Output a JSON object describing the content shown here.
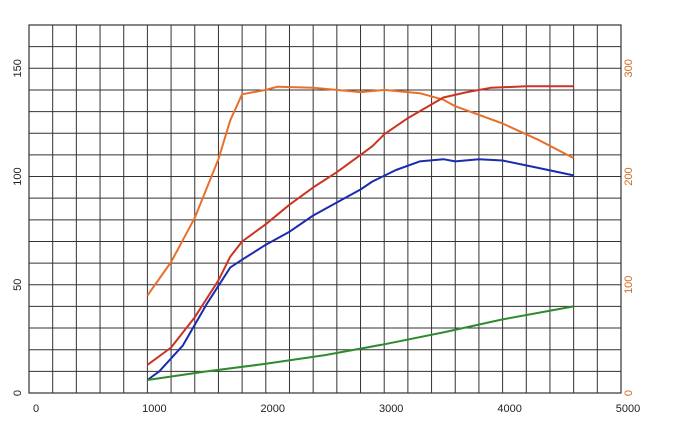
{
  "chart_data": {
    "type": "line",
    "title": "",
    "xlabel": "",
    "ylabel": "",
    "y2label": "",
    "xlim": [
      0,
      5000
    ],
    "ylim": [
      0,
      170
    ],
    "y2lim": [
      0,
      340
    ],
    "grid": true,
    "x_ticks": [
      "0",
      "1000",
      "2000",
      "3000",
      "4000",
      "5000"
    ],
    "y_ticks": [
      "0",
      "50",
      "100",
      "150"
    ],
    "y2_ticks": [
      "0",
      "100",
      "200",
      "300"
    ],
    "colors": {
      "grid": "#333333",
      "y2_axis": "#d2691e"
    },
    "series": [
      {
        "color": "#e8702a",
        "axis": "right",
        "x": [
          1000,
          1200,
          1400,
          1600,
          1700,
          1800,
          2000,
          2100,
          2400,
          2800,
          3000,
          3300,
          3500,
          3600,
          4000,
          4300,
          4600
        ],
        "values": [
          90,
          121,
          162,
          216,
          252,
          276,
          280,
          283,
          282,
          278,
          280,
          277,
          271,
          265,
          249,
          234,
          217
        ]
      },
      {
        "color": "#cc3322",
        "axis": "left",
        "x": [
          1000,
          1200,
          1400,
          1600,
          1700,
          1800,
          2000,
          2200,
          2400,
          2600,
          2800,
          2900,
          3000,
          3200,
          3500,
          3700,
          3900,
          4200,
          4600
        ],
        "values": [
          13,
          21,
          35,
          52,
          63,
          70,
          78,
          87,
          95,
          102,
          110,
          114,
          119.5,
          127,
          136.5,
          139,
          141,
          141.7,
          141.7
        ]
      },
      {
        "color": "#1a2bb0",
        "axis": "left",
        "x": [
          1000,
          1100,
          1300,
          1500,
          1700,
          1800,
          2000,
          2200,
          2400,
          2600,
          2800,
          2900,
          3100,
          3300,
          3500,
          3600,
          3800,
          4000,
          4300,
          4600
        ],
        "values": [
          6,
          10,
          22,
          41,
          58,
          61.6,
          68.5,
          74.5,
          82,
          88,
          94,
          97.7,
          103,
          107,
          108,
          107,
          108,
          107.4,
          104,
          100.5
        ]
      },
      {
        "color": "#2e8b2e",
        "axis": "left",
        "x": [
          1000,
          1500,
          2000,
          2500,
          3000,
          3500,
          4000,
          4300,
          4600
        ],
        "values": [
          6,
          10,
          13.5,
          17.5,
          22.5,
          28,
          34,
          37,
          40
        ]
      }
    ]
  }
}
